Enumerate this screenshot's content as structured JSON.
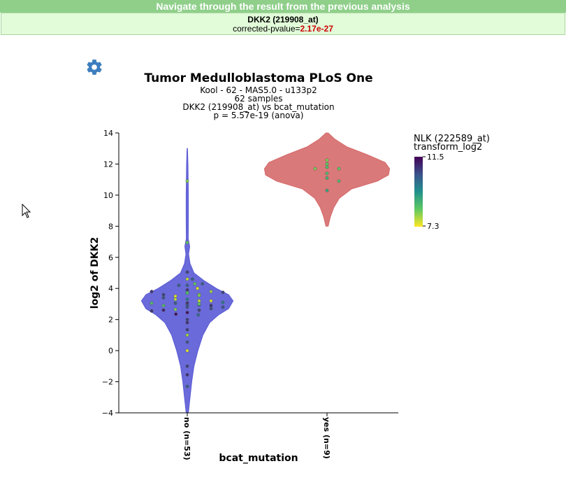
{
  "nav": {
    "label": "Navigate through the result from the previous analysis"
  },
  "result": {
    "probe": "DKK2 (219908_at)",
    "pvalue_label": "corrected-pvalue=",
    "pvalue": "2.17e-27"
  },
  "chart_data": {
    "type": "violin",
    "title": "Tumor Medulloblastoma PLoS One",
    "subtitle_lines": [
      "Kool - 62 - MAS5.0 - u133p2",
      "62 samples",
      "DKK2 (219908_at) vs bcat_mutation",
      "p = 5.57e-19 (anova)"
    ],
    "xlabel": "bcat_mutation",
    "ylabel": "log2 of DKK2",
    "ylim": [
      -4,
      14
    ],
    "yticks": [
      -4,
      -2,
      0,
      2,
      4,
      6,
      8,
      10,
      12,
      14
    ],
    "ytick_labels": [
      "−4",
      "−2",
      "0",
      "2",
      "4",
      "6",
      "8",
      "10",
      "12",
      "14"
    ],
    "categories": [
      "no (n=53)",
      "yes (n=9)"
    ],
    "colorbar": {
      "title_line1": "NLK (222589_at)",
      "title_line2": "transform_log2",
      "max": "11.5",
      "min": "7.3",
      "colorscale": [
        "#fde725",
        "#5ec962",
        "#21918c",
        "#3b528b",
        "#440154"
      ]
    },
    "series": [
      {
        "category": "no (n=53)",
        "fill": "#5a5ad6",
        "y_range": [
          -4,
          13
        ],
        "density": [
          [
            -4,
            0.01
          ],
          [
            -3,
            0.025
          ],
          [
            -2,
            0.04
          ],
          [
            -1,
            0.06
          ],
          [
            0,
            0.095
          ],
          [
            1,
            0.14
          ],
          [
            1.8,
            0.2
          ],
          [
            2.3,
            0.28
          ],
          [
            2.7,
            0.37
          ],
          [
            3.2,
            0.41
          ],
          [
            3.6,
            0.37
          ],
          [
            4,
            0.26
          ],
          [
            4.5,
            0.15
          ],
          [
            5,
            0.06
          ],
          [
            5.6,
            0.025
          ],
          [
            6.2,
            0.012
          ],
          [
            6.7,
            0.022
          ],
          [
            7.2,
            0.009
          ],
          [
            8.5,
            0.01
          ],
          [
            10,
            0.01
          ],
          [
            11,
            0.008
          ],
          [
            12,
            0.006
          ],
          [
            13,
            0.002
          ]
        ],
        "points": [
          {
            "y": 10.9,
            "c": 0.2
          },
          {
            "y": 6.95,
            "c": 0.25
          },
          {
            "y": 5.05,
            "c": 0.8
          },
          {
            "y": 4.6,
            "c": 0.1
          },
          {
            "y": 4.2,
            "c": 0.7
          },
          {
            "y": 3.9,
            "c": 0.85
          },
          {
            "y": 3.75,
            "c": 0.3
          },
          {
            "y": 3.6,
            "c": 0.15
          },
          {
            "y": 3.5,
            "c": 0.05
          },
          {
            "y": 3.3,
            "c": 0.6
          },
          {
            "y": 3.2,
            "c": 0.1
          },
          {
            "y": 3.05,
            "c": 0.9
          },
          {
            "y": 2.95,
            "c": 0.7
          },
          {
            "y": 2.8,
            "c": 0.75
          },
          {
            "y": 2.6,
            "c": 0.8
          },
          {
            "y": 2.45,
            "c": 0.95
          },
          {
            "y": 2.3,
            "c": 0.65
          },
          {
            "y": 1.8,
            "c": 0.85
          },
          {
            "y": 1.35,
            "c": 0.8
          },
          {
            "y": 1.0,
            "c": 0.15
          },
          {
            "y": 0.55,
            "c": 0.75
          },
          {
            "y": 0.0,
            "c": 0.05
          },
          {
            "y": -1.0,
            "c": 0.8
          },
          {
            "y": -1.55,
            "c": 0.85
          },
          {
            "y": -2.3,
            "c": 0.7
          },
          {
            "y": 4.3,
            "c": 0.25
          },
          {
            "y": 3.8,
            "c": 0.15
          },
          {
            "y": 3.6,
            "c": 0.8
          },
          {
            "y": 3.05,
            "c": 0.7
          },
          {
            "y": 2.9,
            "c": 0.85
          },
          {
            "y": 2.65,
            "c": 0.2
          },
          {
            "y": 4.2,
            "c": 0.7
          },
          {
            "y": 3.75,
            "c": 0.8
          },
          {
            "y": 3.3,
            "c": 0.1
          },
          {
            "y": 2.7,
            "c": 0.75
          },
          {
            "y": 4.3,
            "c": 0.7
          },
          {
            "y": 3.8,
            "c": 0.85
          },
          {
            "y": 2.9,
            "c": 0.3
          },
          {
            "y": 2.6,
            "c": 0.9
          },
          {
            "y": 2.35,
            "c": 0.95
          },
          {
            "y": 3.7,
            "c": 0.3
          },
          {
            "y": 3.1,
            "c": 0.6
          },
          {
            "y": 2.8,
            "c": 0.75
          },
          {
            "y": 3.55,
            "c": 0.2
          },
          {
            "y": 2.55,
            "c": 0.85
          },
          {
            "y": 3.05,
            "c": 0.3
          },
          {
            "y": 2.95,
            "c": 0.75
          },
          {
            "y": 3.2,
            "c": 0.05
          },
          {
            "y": 2.0,
            "c": 0.8
          },
          {
            "y": 3.4,
            "c": 0.75
          },
          {
            "y": 3.0,
            "c": 0.25
          },
          {
            "y": 4.0,
            "c": 0.05
          },
          {
            "y": 4.6,
            "c": 0.7
          }
        ]
      },
      {
        "category": "yes (n=9)",
        "fill": "#d66a6a",
        "y_range": [
          8,
          14
        ],
        "density": [
          [
            8,
            0.01
          ],
          [
            8.6,
            0.03
          ],
          [
            9.2,
            0.06
          ],
          [
            9.8,
            0.11
          ],
          [
            10.4,
            0.22
          ],
          [
            10.9,
            0.45
          ],
          [
            11.3,
            0.55
          ],
          [
            11.7,
            0.56
          ],
          [
            12.1,
            0.52
          ],
          [
            12.6,
            0.36
          ],
          [
            13.1,
            0.18
          ],
          [
            13.6,
            0.07
          ],
          [
            14,
            0.01
          ]
        ],
        "points": [
          {
            "y": 12.25,
            "c": 0.2
          },
          {
            "y": 12.0,
            "c": 0.25
          },
          {
            "y": 11.8,
            "c": 0.3
          },
          {
            "y": 11.7,
            "c": 0.25
          },
          {
            "y": 11.7,
            "c": 0.2
          },
          {
            "y": 11.4,
            "c": 0.3
          },
          {
            "y": 11.1,
            "c": 0.35
          },
          {
            "y": 10.9,
            "c": 0.3
          },
          {
            "y": 10.3,
            "c": 0.4
          }
        ]
      }
    ]
  }
}
